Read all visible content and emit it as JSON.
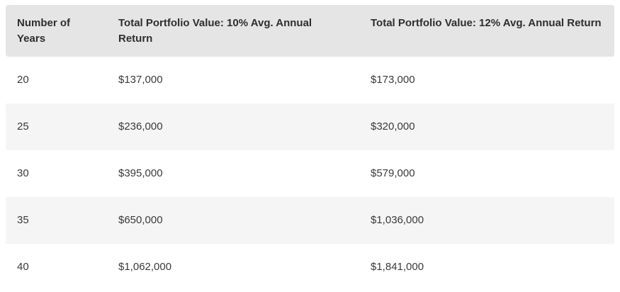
{
  "colors": {
    "header_bg": "#e5e5e5",
    "header_text": "#2e2e2e",
    "row_bg": "#ffffff",
    "row_stripe_bg": "#f5f5f5",
    "body_text": "#3a3a3a"
  },
  "chart_data": {
    "type": "table",
    "title": "",
    "columns": [
      "Number of Years",
      "Total Portfolio Value: 10% Avg. Annual Return",
      "Total Portfolio Value: 12% Avg. Annual Return"
    ],
    "rows": [
      [
        "20",
        "$137,000",
        "$173,000"
      ],
      [
        "25",
        "$236,000",
        "$320,000"
      ],
      [
        "30",
        "$395,000",
        "$579,000"
      ],
      [
        "35",
        "$650,000",
        "$1,036,000"
      ],
      [
        "40",
        "$1,062,000",
        "$1,841,000"
      ]
    ],
    "categories": [
      20,
      25,
      30,
      35,
      40
    ],
    "series": [
      {
        "name": "Total Portfolio Value: 10% Avg. Annual Return",
        "values": [
          137000,
          236000,
          395000,
          650000,
          1062000
        ]
      },
      {
        "name": "Total Portfolio Value: 12% Avg. Annual Return",
        "values": [
          173000,
          320000,
          579000,
          1036000,
          1841000
        ]
      }
    ],
    "xlabel": "Number of Years",
    "ylabel": "Total Portfolio Value",
    "legend_position": "header-row",
    "grid": false
  }
}
